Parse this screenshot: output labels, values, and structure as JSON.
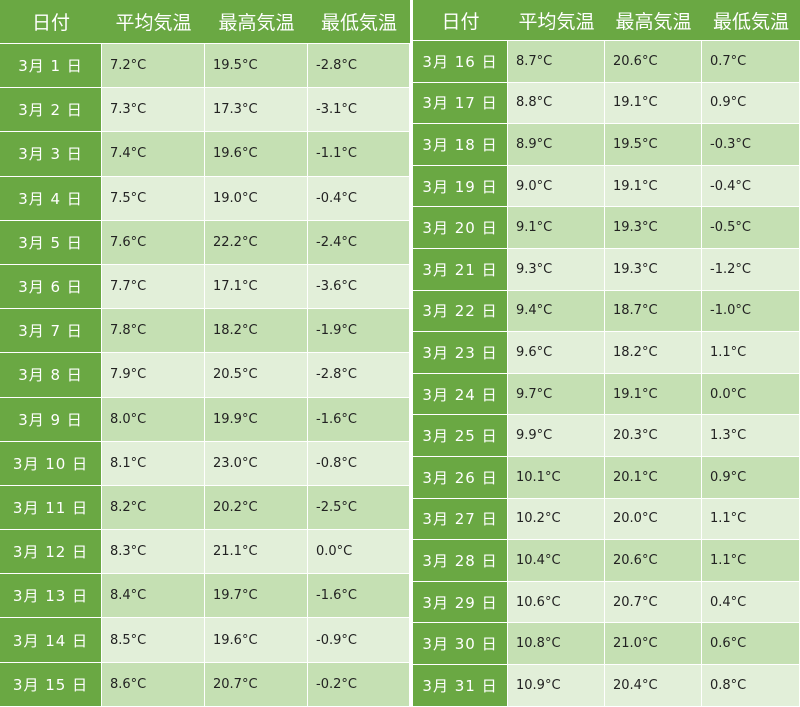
{
  "headers": [
    "日付",
    "平均気温",
    "最高気温",
    "最低気温"
  ],
  "colors": {
    "header": "#6aa843",
    "row_dark": "#c5e0b3",
    "row_light": "#e2efd9"
  },
  "rows": [
    {
      "date": "3月 1 日",
      "avg": "7.2°C",
      "max": "19.5°C",
      "min": "-2.8°C"
    },
    {
      "date": "3月 2 日",
      "avg": "7.3°C",
      "max": "17.3°C",
      "min": "-3.1°C"
    },
    {
      "date": "3月 3 日",
      "avg": "7.4°C",
      "max": "19.6°C",
      "min": "-1.1°C"
    },
    {
      "date": "3月 4 日",
      "avg": "7.5°C",
      "max": "19.0°C",
      "min": "-0.4°C"
    },
    {
      "date": "3月 5 日",
      "avg": "7.6°C",
      "max": "22.2°C",
      "min": "-2.4°C"
    },
    {
      "date": "3月 6 日",
      "avg": "7.7°C",
      "max": "17.1°C",
      "min": "-3.6°C"
    },
    {
      "date": "3月 7 日",
      "avg": "7.8°C",
      "max": "18.2°C",
      "min": "-1.9°C"
    },
    {
      "date": "3月 8 日",
      "avg": "7.9°C",
      "max": "20.5°C",
      "min": "-2.8°C"
    },
    {
      "date": "3月 9 日",
      "avg": "8.0°C",
      "max": "19.9°C",
      "min": "-1.6°C"
    },
    {
      "date": "3月 10 日",
      "avg": "8.1°C",
      "max": "23.0°C",
      "min": "-0.8°C"
    },
    {
      "date": "3月 11 日",
      "avg": "8.2°C",
      "max": "20.2°C",
      "min": "-2.5°C"
    },
    {
      "date": "3月 12 日",
      "avg": "8.3°C",
      "max": "21.1°C",
      "min": "0.0°C"
    },
    {
      "date": "3月 13 日",
      "avg": "8.4°C",
      "max": "19.7°C",
      "min": "-1.6°C"
    },
    {
      "date": "3月 14 日",
      "avg": "8.5°C",
      "max": "19.6°C",
      "min": "-0.9°C"
    },
    {
      "date": "3月 15 日",
      "avg": "8.6°C",
      "max": "20.7°C",
      "min": "-0.2°C"
    },
    {
      "date": "3月 16 日",
      "avg": "8.7°C",
      "max": "20.6°C",
      "min": "0.7°C"
    },
    {
      "date": "3月 17 日",
      "avg": "8.8°C",
      "max": "19.1°C",
      "min": "0.9°C"
    },
    {
      "date": "3月 18 日",
      "avg": "8.9°C",
      "max": "19.5°C",
      "min": "-0.3°C"
    },
    {
      "date": "3月 19 日",
      "avg": "9.0°C",
      "max": "19.1°C",
      "min": "-0.4°C"
    },
    {
      "date": "3月 20 日",
      "avg": "9.1°C",
      "max": "19.3°C",
      "min": "-0.5°C"
    },
    {
      "date": "3月 21 日",
      "avg": "9.3°C",
      "max": "19.3°C",
      "min": "-1.2°C"
    },
    {
      "date": "3月 22 日",
      "avg": "9.4°C",
      "max": "18.7°C",
      "min": "-1.0°C"
    },
    {
      "date": "3月 23 日",
      "avg": "9.6°C",
      "max": "18.2°C",
      "min": "1.1°C"
    },
    {
      "date": "3月 24 日",
      "avg": "9.7°C",
      "max": "19.1°C",
      "min": "0.0°C"
    },
    {
      "date": "3月 25 日",
      "avg": "9.9°C",
      "max": "20.3°C",
      "min": "1.3°C"
    },
    {
      "date": "3月 26 日",
      "avg": "10.1°C",
      "max": "20.1°C",
      "min": "0.9°C"
    },
    {
      "date": "3月 27 日",
      "avg": "10.2°C",
      "max": "20.0°C",
      "min": "1.1°C"
    },
    {
      "date": "3月 28 日",
      "avg": "10.4°C",
      "max": "20.6°C",
      "min": "1.1°C"
    },
    {
      "date": "3月 29 日",
      "avg": "10.6°C",
      "max": "20.7°C",
      "min": "0.4°C"
    },
    {
      "date": "3月 30 日",
      "avg": "10.8°C",
      "max": "21.0°C",
      "min": "0.6°C"
    },
    {
      "date": "3月 31 日",
      "avg": "10.9°C",
      "max": "20.4°C",
      "min": "0.8°C"
    }
  ]
}
